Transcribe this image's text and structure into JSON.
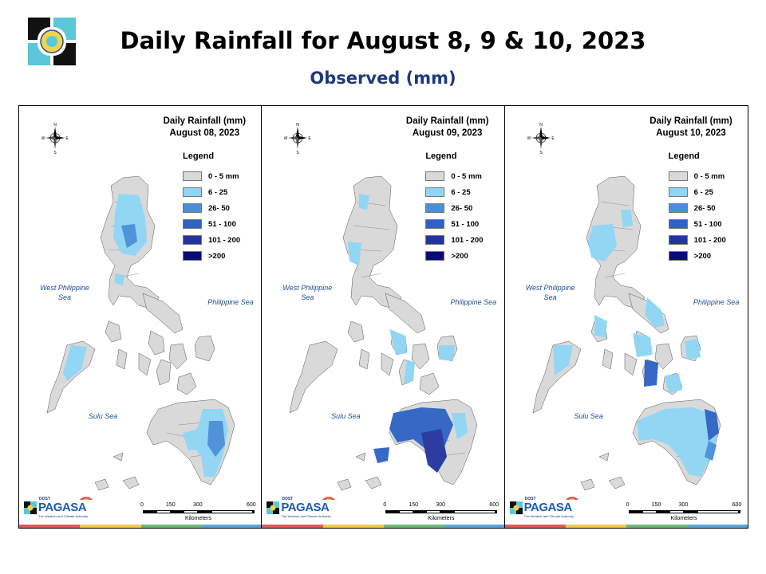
{
  "header": {
    "title": "Daily Rainfall for August 8, 9 & 10, 2023",
    "subtitle": "Observed (mm)"
  },
  "legend": {
    "title": "Legend",
    "classes": [
      {
        "label": "0 - 5 mm",
        "color": "#d9d9d9"
      },
      {
        "label": "6 - 25",
        "color": "#8fd6f5"
      },
      {
        "label": "26- 50",
        "color": "#4a90d9"
      },
      {
        "label": "51 - 100",
        "color": "#2e62c4"
      },
      {
        "label": "101 - 200",
        "color": "#23349e"
      },
      {
        "label": ">200",
        "color": "#0b0b78"
      }
    ]
  },
  "panels": [
    {
      "title_line1": "Daily Rainfall (mm)",
      "date": "August 08, 2023"
    },
    {
      "title_line1": "Daily Rainfall (mm)",
      "date": "August 09, 2023"
    },
    {
      "title_line1": "Daily Rainfall (mm)",
      "date": "August 10, 2023"
    }
  ],
  "seas": {
    "west": "West Philippine Sea",
    "east": "Philippine Sea",
    "sulu": "Sulu Sea"
  },
  "compass": {
    "n": "N",
    "s": "S",
    "e": "E",
    "w": "W"
  },
  "scale": {
    "ticks": [
      "0",
      "150",
      "300",
      "600"
    ],
    "unit": "Kilometers"
  },
  "brand": {
    "small": "DOST",
    "name": "PAGASA",
    "tagline": "The Weather and Climate Authority"
  },
  "colors": {
    "land": "#d9d9d9",
    "border": "#555555",
    "light": "#8fd6f5",
    "mid": "#4a90d9",
    "heavy": "#2e62c4",
    "stripe": [
      "#e05a5a",
      "#f2c94c",
      "#6fb87a",
      "#5aa7d8"
    ]
  }
}
